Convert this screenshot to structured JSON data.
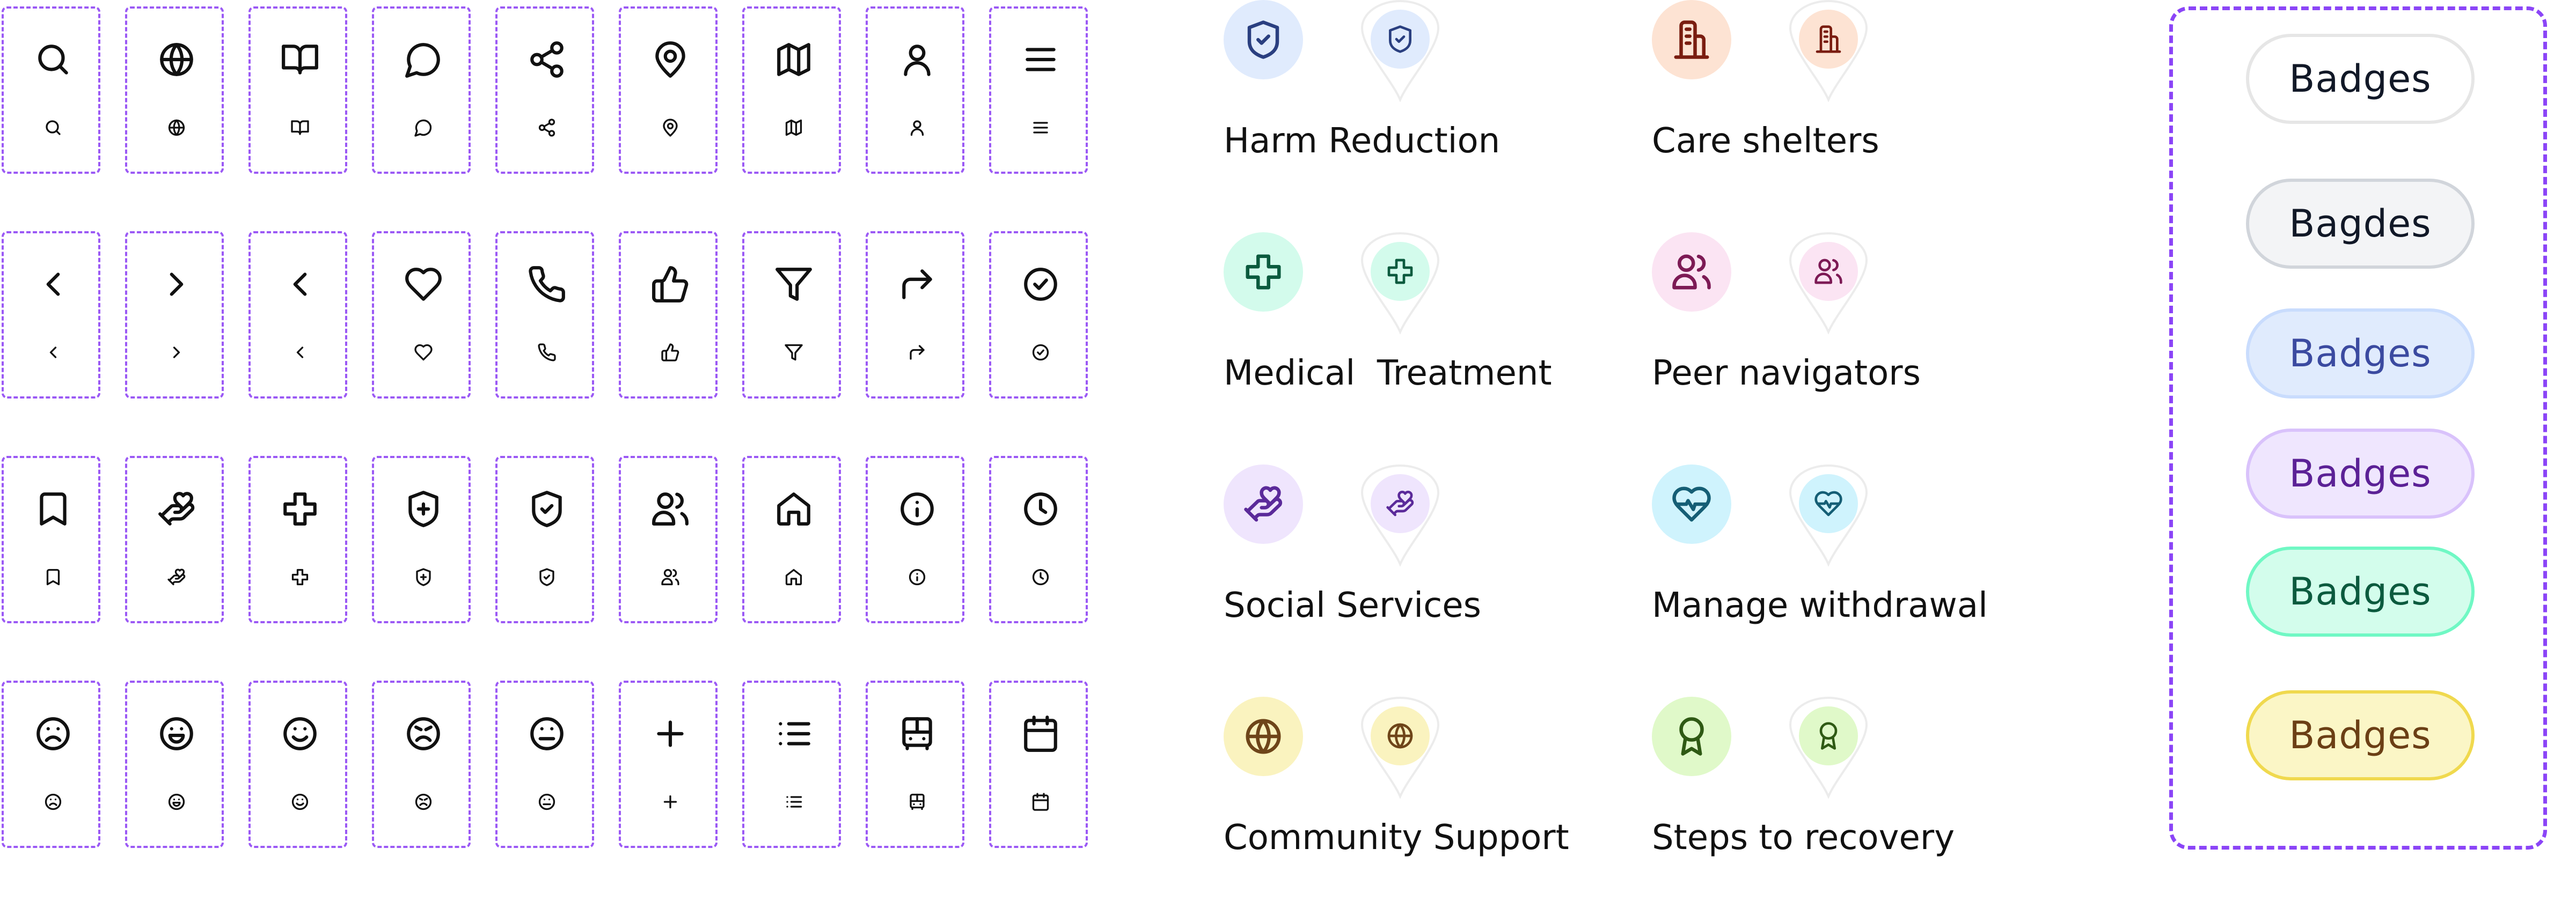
{
  "icon_grid": {
    "rows": [
      [
        "search",
        "globe",
        "book-open",
        "message-circle",
        "share",
        "map-pin",
        "map",
        "user",
        "menu"
      ],
      [
        "chevron-left",
        "chevron-right",
        "chevron-left",
        "heart",
        "phone",
        "thumbs-up",
        "filter",
        "corner-up-right",
        "circle-check"
      ],
      [
        "bookmark",
        "hand-heart",
        "medical-cross",
        "shield-plus",
        "shield-check",
        "users",
        "home",
        "info",
        "clock"
      ],
      [
        "frown",
        "laugh",
        "smile",
        "angry",
        "meh",
        "plus",
        "list",
        "bus",
        "calendar"
      ]
    ],
    "border_color": "#9b59f5"
  },
  "categories": [
    {
      "label": "Harm Reduction",
      "icon": "shield-check",
      "bg": "#e0ebfd",
      "fg": "#2a3f80"
    },
    {
      "label": "Care shelters",
      "icon": "building",
      "bg": "#fde3d3",
      "fg": "#7a1d10"
    },
    {
      "label": "Medical  Treatment",
      "icon": "medical-cross",
      "bg": "#d3fbec",
      "fg": "#0b5a3e"
    },
    {
      "label": "Peer navigators",
      "icon": "users",
      "bg": "#fbe4f3",
      "fg": "#7d1a55"
    },
    {
      "label": "Social Services",
      "icon": "hand-heart",
      "bg": "#efe5fd",
      "fg": "#5b2a9a"
    },
    {
      "label": "Manage withdrawal",
      "icon": "heart-pulse",
      "bg": "#cff3fd",
      "fg": "#155e75"
    },
    {
      "label": "Community Support",
      "icon": "globe",
      "bg": "#faf3bf",
      "fg": "#6e4519"
    },
    {
      "label": "Steps to recovery",
      "icon": "award",
      "bg": "#e0f9c9",
      "fg": "#2f5a14"
    }
  ],
  "badges": [
    {
      "label": "Badges",
      "bg": "#ffffff",
      "border": "#e6e6e6",
      "fg": "#111827"
    },
    {
      "label": "Bagdes",
      "bg": "#f3f4f6",
      "border": "#d1d5db",
      "fg": "#111827"
    },
    {
      "label": "Badges",
      "bg": "#e0ebfd",
      "border": "#c9dcfd",
      "fg": "#3b4aa0"
    },
    {
      "label": "Badges",
      "bg": "#efe6fe",
      "border": "#d9c2fb",
      "fg": "#5b2196"
    },
    {
      "label": "Badges",
      "bg": "#d3fdec",
      "border": "#70f8c4",
      "fg": "#0b5a3e"
    },
    {
      "label": "Badges",
      "bg": "#fbf6c6",
      "border": "#f0d94e",
      "fg": "#6b3f15"
    }
  ]
}
